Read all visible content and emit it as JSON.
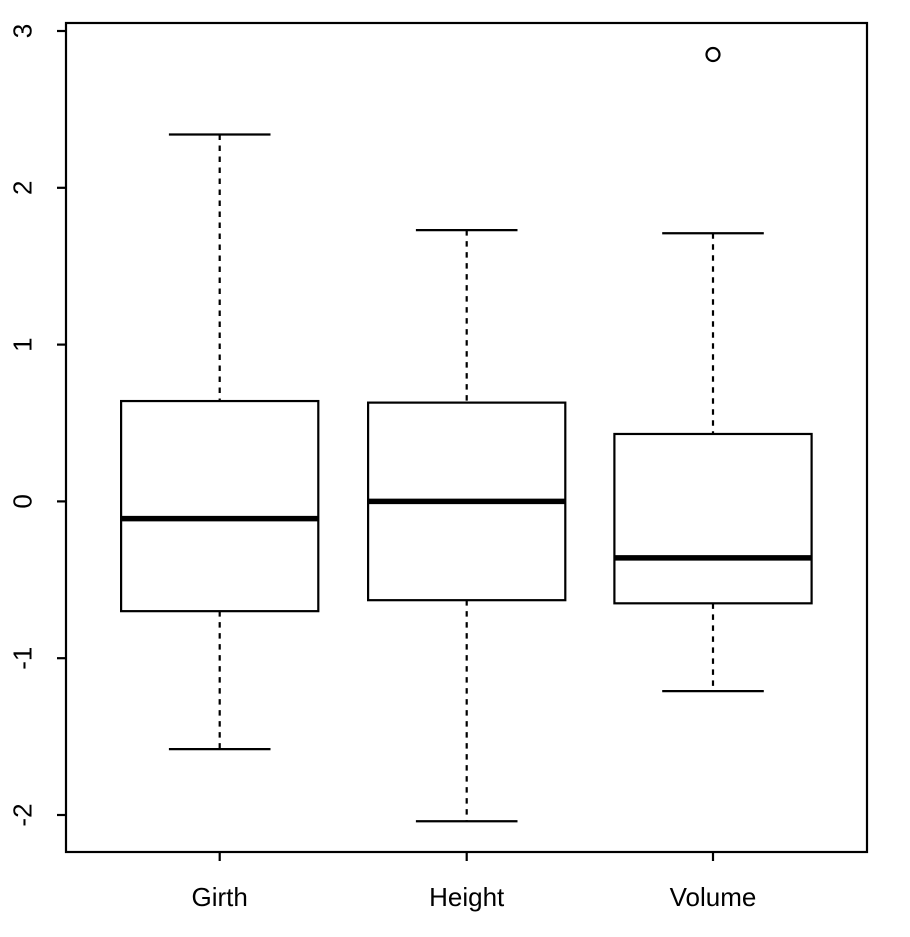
{
  "figure": {
    "background_color": "#ffffff",
    "foreground_color": "#000000",
    "title": ""
  },
  "chart_data": {
    "type": "boxplot",
    "title": "",
    "xlabel": "",
    "ylabel": "",
    "categories": [
      "Girth",
      "Height",
      "Volume"
    ],
    "ylim": [
      -2.24,
      3.05
    ],
    "yticks": [
      "3",
      "2",
      "1",
      "0",
      "-1",
      "-2"
    ],
    "ytick_values": [
      3,
      2,
      1,
      0,
      -1,
      -2
    ],
    "grid": false,
    "legend_position": "none",
    "series": [
      {
        "name": "Girth",
        "lower_whisker": -1.58,
        "q1": -0.7,
        "median": -0.11,
        "q3": 0.64,
        "upper_whisker": 2.34,
        "outliers": []
      },
      {
        "name": "Height",
        "lower_whisker": -2.04,
        "q1": -0.63,
        "median": 0.0,
        "q3": 0.63,
        "upper_whisker": 1.73,
        "outliers": []
      },
      {
        "name": "Volume",
        "lower_whisker": -1.21,
        "q1": -0.65,
        "median": -0.36,
        "q3": 0.43,
        "upper_whisker": 1.71,
        "outliers": [
          2.85
        ]
      }
    ]
  }
}
